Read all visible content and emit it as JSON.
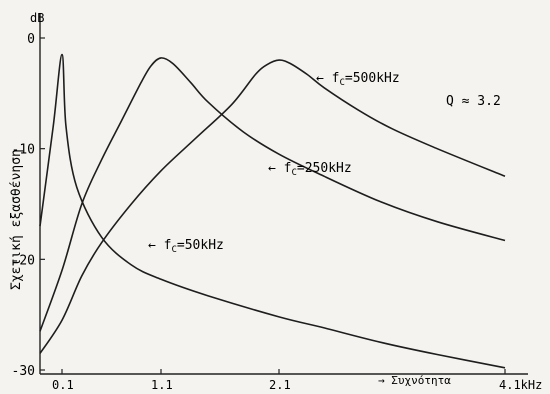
{
  "chart_data": {
    "type": "line",
    "ylabel": "Σχετική εξασθένηση",
    "yunit": "dB",
    "xlabel": "→ Συχνότητα",
    "xunit": "kHz",
    "x_tick_labels": [
      "0.1",
      "1.1",
      "2.1",
      "4.1kHz"
    ],
    "y_tick_labels": [
      "0",
      "-10",
      "-20",
      "-30"
    ],
    "ylim": [
      -30,
      0
    ],
    "note": "Q ≈ 3.2",
    "grid": false,
    "series": [
      {
        "name": "f_C=50kHz",
        "label_main": "f",
        "label_sub": "C",
        "label_rest": "=50kHz",
        "points": [
          [
            0.0,
            -17.0
          ],
          [
            0.06,
            -8.0
          ],
          [
            0.1,
            -1.5
          ],
          [
            0.14,
            -8.0
          ],
          [
            0.25,
            -13.5
          ],
          [
            0.5,
            -18.0
          ],
          [
            0.8,
            -20.5
          ],
          [
            1.1,
            -21.8
          ],
          [
            1.5,
            -23.3
          ],
          [
            2.1,
            -25.2
          ],
          [
            2.5,
            -26.2
          ],
          [
            3.0,
            -27.5
          ],
          [
            3.5,
            -28.6
          ],
          [
            4.1,
            -29.8
          ]
        ]
      },
      {
        "name": "f_C=250kHz",
        "label_main": "f",
        "label_sub": "C",
        "label_rest": "=250kHz",
        "points": [
          [
            0.0,
            -26.5
          ],
          [
            0.1,
            -21.0
          ],
          [
            0.3,
            -15.0
          ],
          [
            0.5,
            -11.0
          ],
          [
            0.7,
            -7.5
          ],
          [
            0.9,
            -4.0
          ],
          [
            1.0,
            -2.5
          ],
          [
            1.1,
            -1.8
          ],
          [
            1.2,
            -2.3
          ],
          [
            1.35,
            -4.0
          ],
          [
            1.5,
            -5.8
          ],
          [
            1.8,
            -8.5
          ],
          [
            2.1,
            -10.5
          ],
          [
            2.5,
            -12.5
          ],
          [
            3.0,
            -14.8
          ],
          [
            3.5,
            -16.6
          ],
          [
            4.1,
            -18.3
          ]
        ]
      },
      {
        "name": "f_C=500kHz",
        "label_main": "f",
        "label_sub": "C",
        "label_rest": "=500kHz",
        "points": [
          [
            0.0,
            -28.5
          ],
          [
            0.1,
            -25.5
          ],
          [
            0.3,
            -21.5
          ],
          [
            0.5,
            -18.5
          ],
          [
            0.8,
            -15.0
          ],
          [
            1.1,
            -12.0
          ],
          [
            1.4,
            -9.0
          ],
          [
            1.7,
            -6.0
          ],
          [
            1.9,
            -3.3
          ],
          [
            2.0,
            -2.4
          ],
          [
            2.1,
            -2.0
          ],
          [
            2.2,
            -2.3
          ],
          [
            2.35,
            -3.3
          ],
          [
            2.5,
            -4.5
          ],
          [
            2.8,
            -6.5
          ],
          [
            3.1,
            -8.2
          ],
          [
            3.5,
            -10.0
          ],
          [
            4.1,
            -12.5
          ]
        ]
      }
    ]
  }
}
